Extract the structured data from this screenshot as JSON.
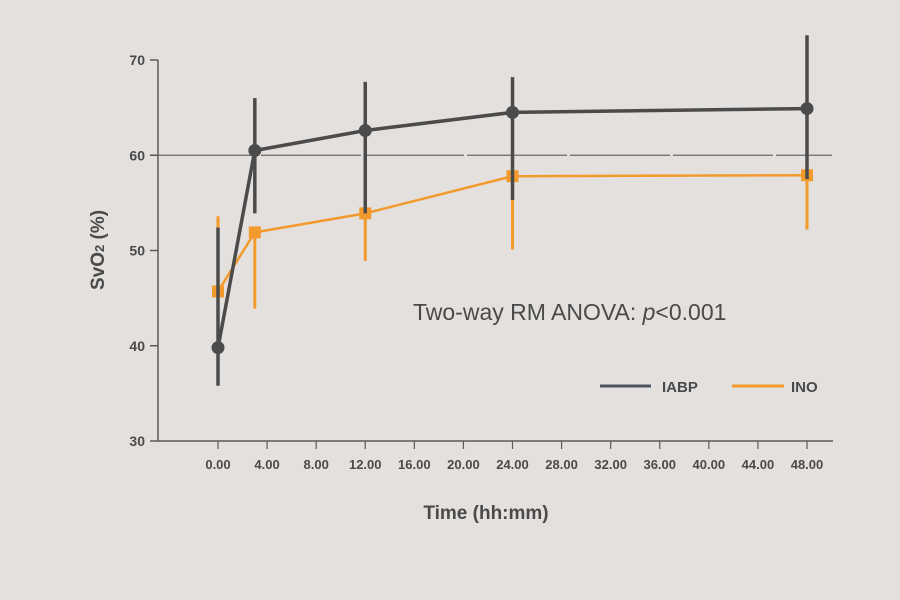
{
  "chart_data": {
    "type": "line",
    "title": "",
    "xlabel": "Time (hh:mm)",
    "ylabel": "SvO2 (%)",
    "ylabel_main": "SvO",
    "ylabel_sub": "2",
    "ylabel_tail": " (%)",
    "ylim": [
      30,
      70
    ],
    "yticks": [
      30,
      40,
      50,
      60,
      70
    ],
    "xlim": [
      0,
      48
    ],
    "xtick_labels": [
      "0.00",
      "4.00",
      "8.00",
      "12.00",
      "16.00",
      "20.00",
      "24.00",
      "28.00",
      "32.00",
      "36.00",
      "40.00",
      "44.00",
      "48.00"
    ],
    "reference_line": {
      "y": 60,
      "style": "dashed"
    },
    "annotation": {
      "prefix": "Two-way RM ANOVA: ",
      "italic": "p",
      "suffix": "<0.001"
    },
    "legend_position": "lower right inside",
    "grid": false,
    "x": [
      0,
      3,
      12,
      24,
      48
    ],
    "series": [
      {
        "name": "IABP",
        "color": "#4b4b4b",
        "marker": "circle",
        "values": [
          39.8,
          60.5,
          62.6,
          64.5,
          64.9
        ],
        "error_low": [
          35.8,
          53.9,
          53.9,
          55.3,
          57.5
        ],
        "error_high": [
          52.4,
          66.0,
          67.7,
          68.2,
          72.6
        ]
      },
      {
        "name": "INO",
        "color": "#f39a2c",
        "marker": "square",
        "values": [
          45.7,
          51.9,
          53.9,
          57.8,
          57.9
        ],
        "error_low": [
          45.7,
          43.9,
          48.9,
          50.1,
          52.2
        ],
        "error_high": [
          53.6,
          51.9,
          53.9,
          57.8,
          60.0
        ]
      }
    ]
  }
}
